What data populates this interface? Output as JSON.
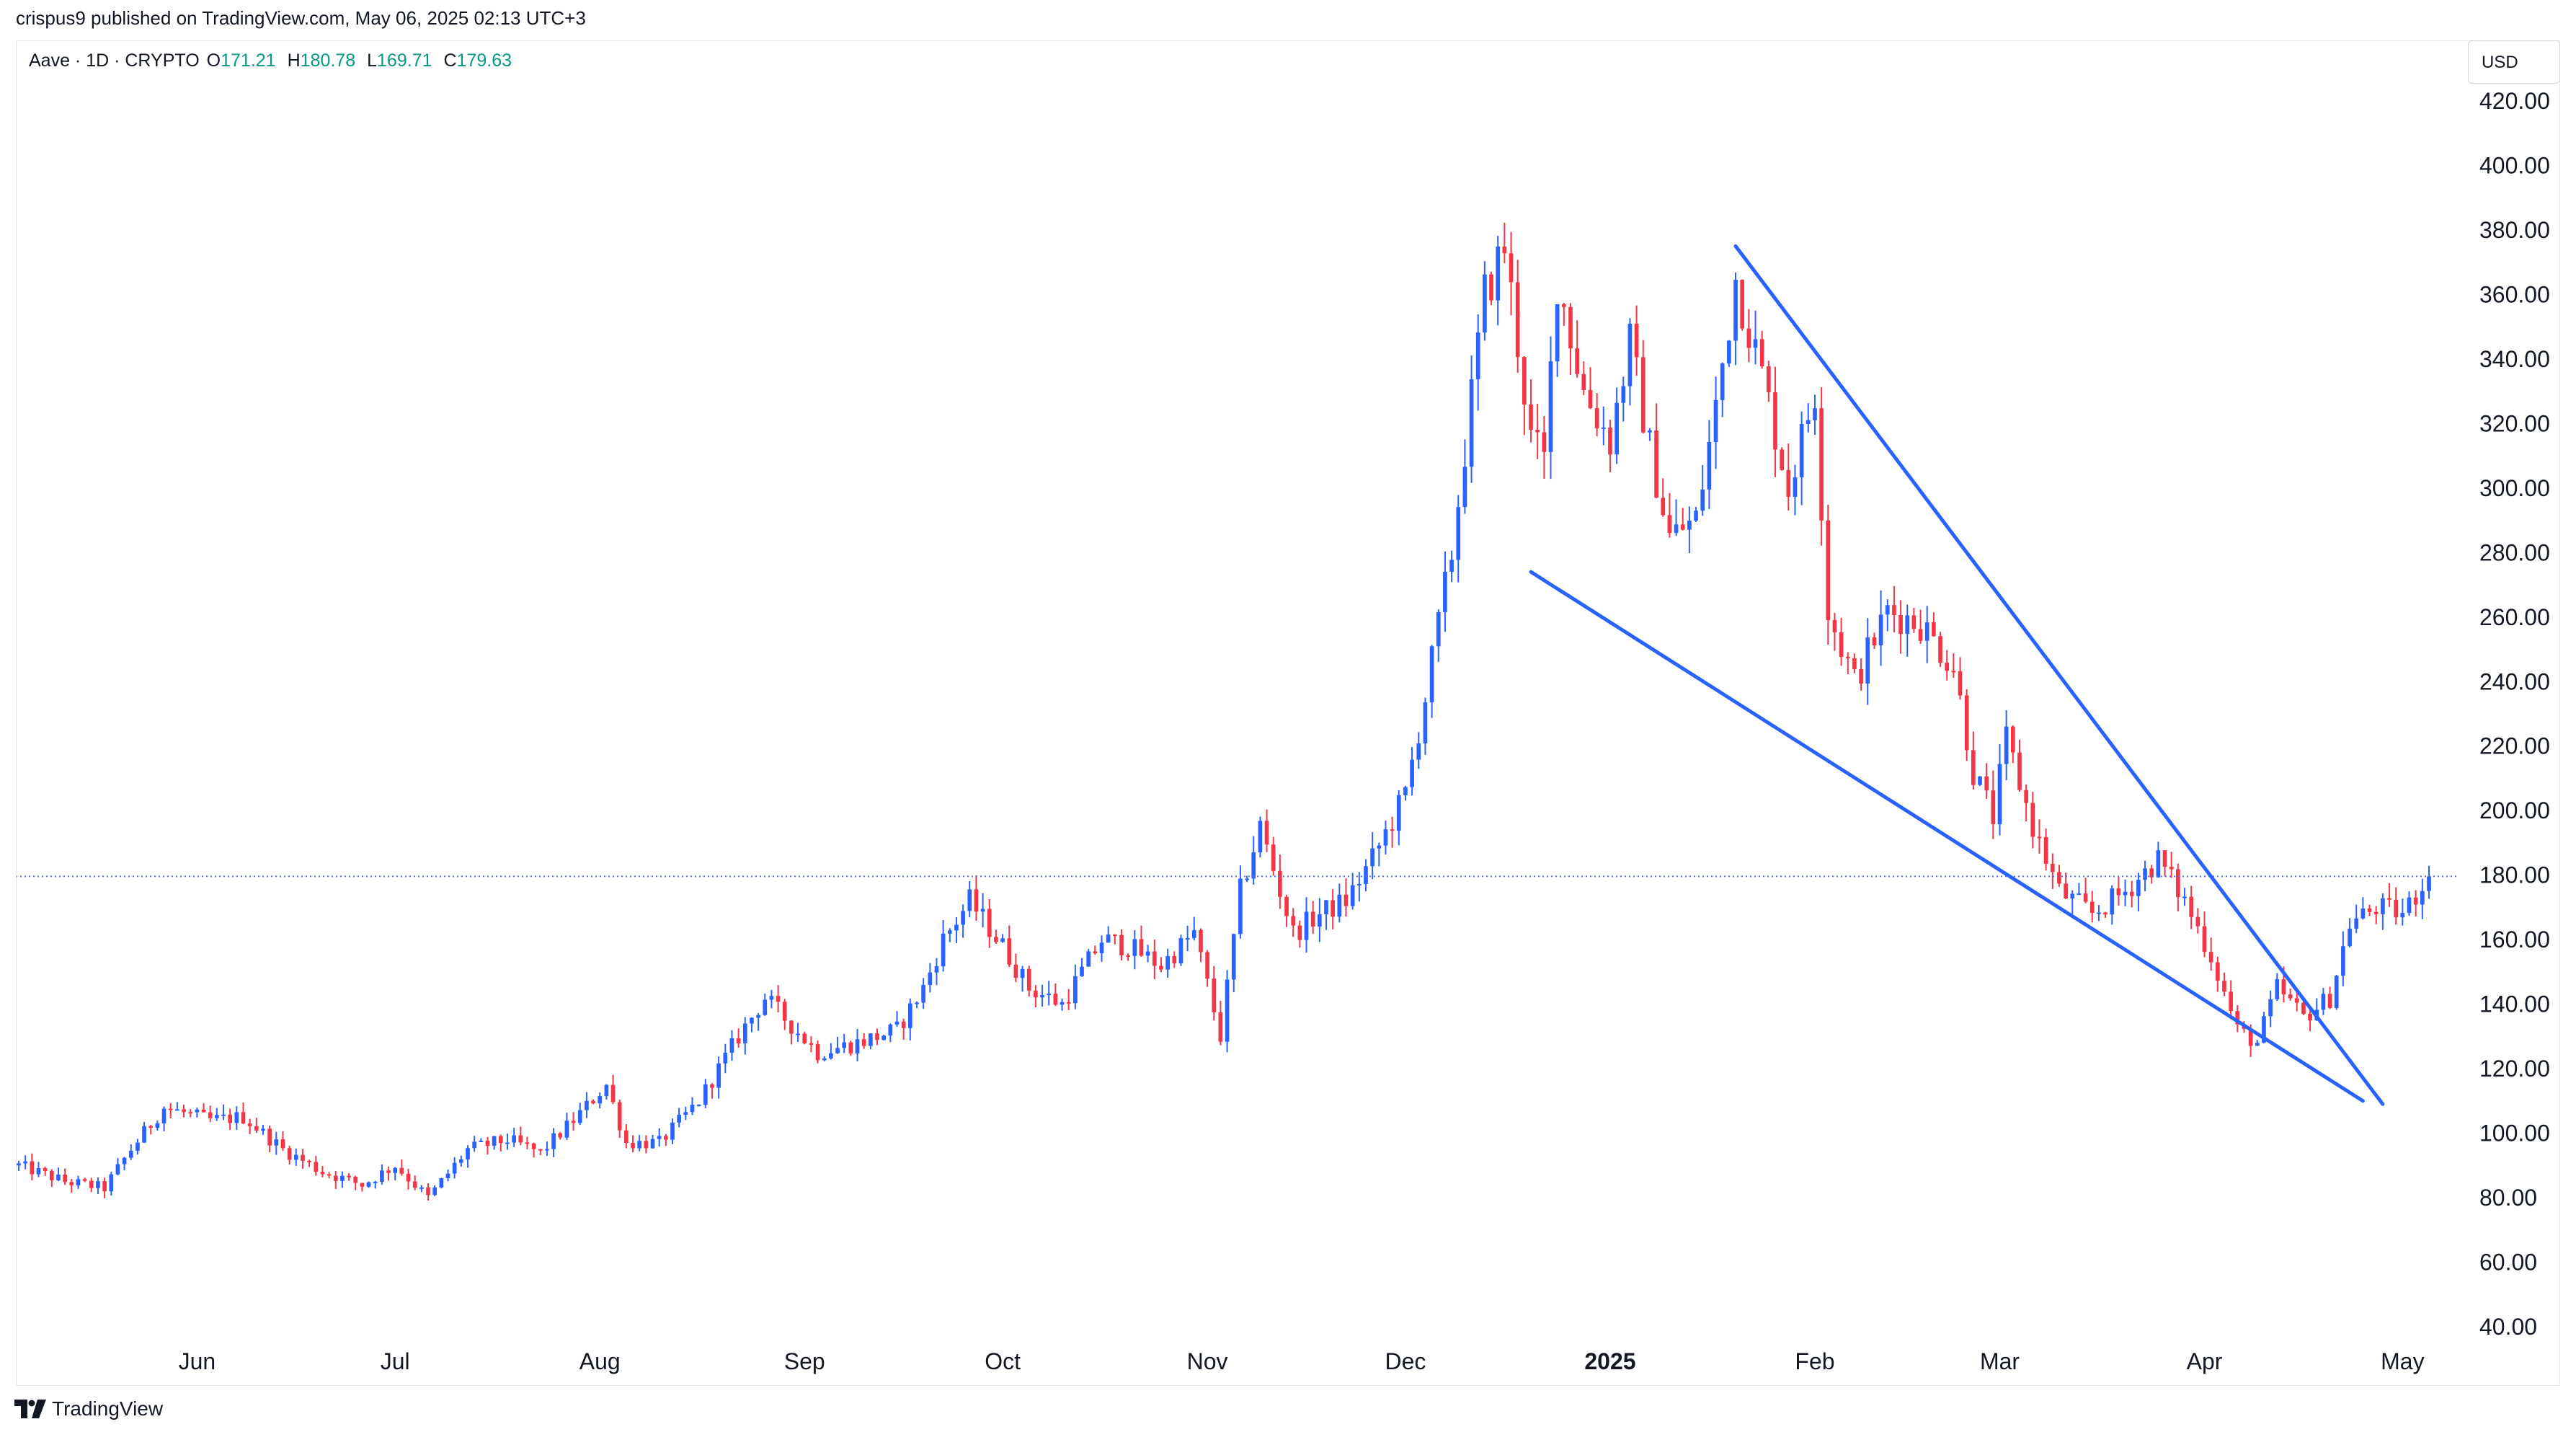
{
  "header": {
    "published": "crispus9 published on TradingView.com, May 06, 2025 02:13 UTC+3"
  },
  "legend": {
    "symbol": "Aave · 1D · CRYPTO",
    "open_label": "O",
    "open": "171.21",
    "high_label": "H",
    "high": "180.78",
    "low_label": "L",
    "low": "169.71",
    "close_label": "C",
    "close": "179.63"
  },
  "currency": "USD",
  "brand": {
    "name": "TradingView",
    "icon": "tradingview-logo-icon"
  },
  "colors": {
    "up": "#2962ff",
    "down": "#f23645",
    "trendline": "#2962ff",
    "price_line": "#5b6ee1",
    "grid": "#ffffff"
  },
  "chart_data": {
    "type": "candlestick",
    "title": "",
    "xlabel": "",
    "ylabel": "",
    "ylim": [
      40,
      420
    ],
    "y_ticks": [
      "420.00",
      "400.00",
      "380.00",
      "360.00",
      "340.00",
      "320.00",
      "300.00",
      "280.00",
      "260.00",
      "240.00",
      "220.00",
      "200.00",
      "180.00",
      "160.00",
      "140.00",
      "120.00",
      "100.00",
      "80.00",
      "60.00",
      "40.00"
    ],
    "x_ticks": [
      {
        "label": "Jun",
        "date": "2024-06-01",
        "bold": false
      },
      {
        "label": "Jul",
        "date": "2024-07-01",
        "bold": false
      },
      {
        "label": "Aug",
        "date": "2024-08-01",
        "bold": false
      },
      {
        "label": "Sep",
        "date": "2024-09-01",
        "bold": false
      },
      {
        "label": "Oct",
        "date": "2024-10-01",
        "bold": false
      },
      {
        "label": "Nov",
        "date": "2024-11-01",
        "bold": false
      },
      {
        "label": "Dec",
        "date": "2024-12-01",
        "bold": false
      },
      {
        "label": "2025",
        "date": "2025-01-01",
        "bold": true
      },
      {
        "label": "Feb",
        "date": "2025-02-01",
        "bold": false
      },
      {
        "label": "Mar",
        "date": "2025-03-01",
        "bold": false
      },
      {
        "label": "Apr",
        "date": "2025-04-01",
        "bold": false
      },
      {
        "label": "May",
        "date": "2025-05-01",
        "bold": false
      }
    ],
    "date_range": [
      "2024-05-05",
      "2025-05-05"
    ],
    "current_price": 179.63,
    "price_path": [
      [
        "2024-05-05",
        90
      ],
      [
        "2024-05-12",
        85
      ],
      [
        "2024-05-18",
        83
      ],
      [
        "2024-05-22",
        95
      ],
      [
        "2024-05-27",
        108
      ],
      [
        "2024-06-03",
        104
      ],
      [
        "2024-06-08",
        105
      ],
      [
        "2024-06-14",
        95
      ],
      [
        "2024-06-20",
        88
      ],
      [
        "2024-06-26",
        84
      ],
      [
        "2024-07-01",
        90
      ],
      [
        "2024-07-06",
        80
      ],
      [
        "2024-07-12",
        95
      ],
      [
        "2024-07-18",
        98
      ],
      [
        "2024-07-23",
        94
      ],
      [
        "2024-07-28",
        104
      ],
      [
        "2024-08-02",
        115
      ],
      [
        "2024-08-05",
        97
      ],
      [
        "2024-08-10",
        97
      ],
      [
        "2024-08-16",
        110
      ],
      [
        "2024-08-22",
        130
      ],
      [
        "2024-08-26",
        142
      ],
      [
        "2024-09-03",
        125
      ],
      [
        "2024-09-09",
        128
      ],
      [
        "2024-09-15",
        132
      ],
      [
        "2024-09-19",
        145
      ],
      [
        "2024-09-22",
        160
      ],
      [
        "2024-09-26",
        172
      ],
      [
        "2024-10-01",
        158
      ],
      [
        "2024-10-05",
        145
      ],
      [
        "2024-10-10",
        140
      ],
      [
        "2024-10-16",
        160
      ],
      [
        "2024-10-20",
        158
      ],
      [
        "2024-10-25",
        152
      ],
      [
        "2024-10-30",
        162
      ],
      [
        "2024-11-03",
        130
      ],
      [
        "2024-11-06",
        175
      ],
      [
        "2024-11-09",
        195
      ],
      [
        "2024-11-14",
        162
      ],
      [
        "2024-11-18",
        168
      ],
      [
        "2024-11-22",
        172
      ],
      [
        "2024-11-26",
        185
      ],
      [
        "2024-12-01",
        205
      ],
      [
        "2024-12-04",
        235
      ],
      [
        "2024-12-08",
        280
      ],
      [
        "2024-12-13",
        360
      ],
      [
        "2024-12-16",
        375
      ],
      [
        "2024-12-20",
        315
      ],
      [
        "2024-12-22",
        308
      ],
      [
        "2024-12-24",
        365
      ],
      [
        "2024-12-28",
        330
      ],
      [
        "2025-01-01",
        315
      ],
      [
        "2025-01-04",
        345
      ],
      [
        "2025-01-07",
        312
      ],
      [
        "2025-01-10",
        285
      ],
      [
        "2025-01-14",
        290
      ],
      [
        "2025-01-17",
        325
      ],
      [
        "2025-01-20",
        365
      ],
      [
        "2025-01-24",
        335
      ],
      [
        "2025-01-28",
        300
      ],
      [
        "2025-02-01",
        330
      ],
      [
        "2025-02-03",
        262
      ],
      [
        "2025-02-07",
        240
      ],
      [
        "2025-02-12",
        262
      ],
      [
        "2025-02-17",
        258
      ],
      [
        "2025-02-22",
        245
      ],
      [
        "2025-02-25",
        212
      ],
      [
        "2025-02-28",
        198
      ],
      [
        "2025-03-02",
        222
      ],
      [
        "2025-03-06",
        195
      ],
      [
        "2025-03-10",
        175
      ],
      [
        "2025-03-15",
        168
      ],
      [
        "2025-03-20",
        175
      ],
      [
        "2025-03-25",
        185
      ],
      [
        "2025-03-29",
        172
      ],
      [
        "2025-04-02",
        155
      ],
      [
        "2025-04-06",
        132
      ],
      [
        "2025-04-09",
        128
      ],
      [
        "2025-04-12",
        145
      ],
      [
        "2025-04-16",
        136
      ],
      [
        "2025-04-20",
        142
      ],
      [
        "2025-04-23",
        165
      ],
      [
        "2025-04-27",
        170
      ],
      [
        "2025-05-01",
        168
      ],
      [
        "2025-05-05",
        179.63
      ]
    ],
    "annotations": [
      {
        "type": "trendline",
        "name": "falling-wedge-upper-line",
        "from": [
          "2025-01-20",
          375
        ],
        "to": [
          "2025-04-28",
          109
        ]
      },
      {
        "type": "trendline",
        "name": "falling-wedge-lower-line",
        "from": [
          "2024-12-20",
          274
        ],
        "to": [
          "2025-04-25",
          110
        ]
      },
      {
        "type": "horizontal_price_line",
        "name": "last-price-line",
        "value": 179.63
      }
    ]
  }
}
